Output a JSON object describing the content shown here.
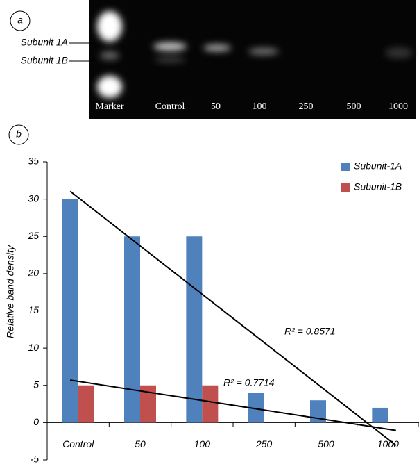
{
  "panel_a": {
    "label": "a",
    "band_labels": [
      "Subunit 1A",
      "Subunit 1B"
    ],
    "lanes": [
      "Marker",
      "Control",
      "50",
      "100",
      "250",
      "500",
      "1000"
    ]
  },
  "chart_data": {
    "type": "bar",
    "panel_label": "b",
    "y_label": "Relative band density",
    "categories": [
      "Control",
      "50",
      "100",
      "250",
      "500",
      "1000"
    ],
    "series": [
      {
        "name": "Subunit-1A",
        "color": "#4f81bd",
        "values": [
          30,
          25,
          25,
          4,
          3,
          2
        ],
        "r2_label": "R² = 0.8571"
      },
      {
        "name": "Subunit-1B",
        "color": "#c0504d",
        "values": [
          5,
          5,
          5,
          0,
          0,
          0
        ],
        "r2_label": "R² = 0.7714"
      }
    ],
    "ylim": [
      -5,
      35
    ],
    "yticks": [
      -5,
      0,
      5,
      10,
      15,
      20,
      25,
      30,
      35
    ],
    "trendline": true
  }
}
